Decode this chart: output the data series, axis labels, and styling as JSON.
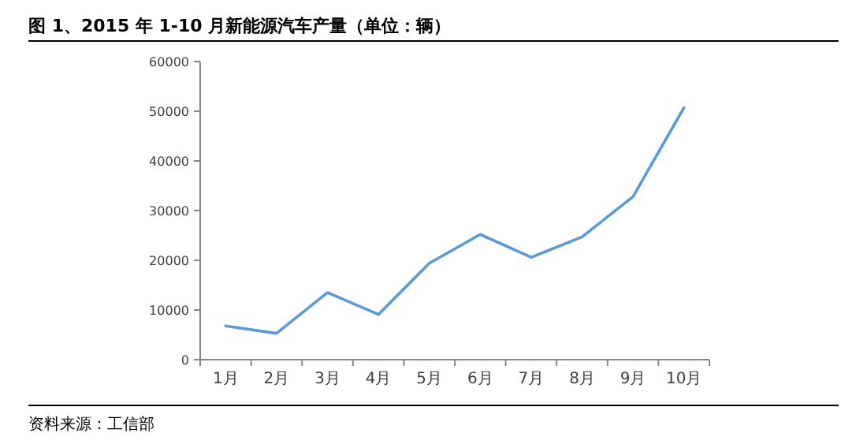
{
  "chart_data": {
    "type": "line",
    "title": "图 1、2015 年 1-10 月新能源汽车产量（单位：辆）",
    "categories": [
      "1月",
      "2月",
      "3月",
      "4月",
      "5月",
      "6月",
      "7月",
      "8月",
      "9月",
      "10月"
    ],
    "series": [
      {
        "color": "#5b9bd5",
        "values": [
          6800,
          5300,
          13500,
          9100,
          19400,
          25200,
          20600,
          24700,
          32800,
          50700
        ]
      }
    ],
    "ylim": [
      0,
      60000
    ],
    "yticks": [
      0,
      10000,
      20000,
      30000,
      40000,
      50000,
      60000
    ],
    "grid": false,
    "marker": "none",
    "line_style": "solid",
    "annotations": [
      "资料来源：工信部"
    ]
  }
}
